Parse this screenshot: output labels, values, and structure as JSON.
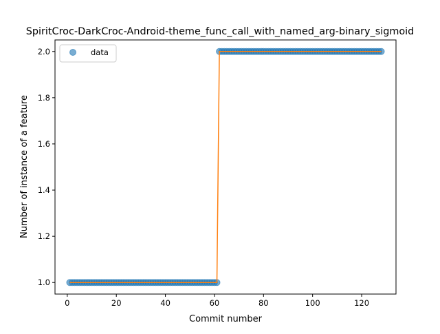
{
  "chart_data": {
    "type": "scatter",
    "title": "SpiritCroc-DarkCroc-Android-theme_func_call_with_named_arg-binary_sigmoid",
    "xlabel": "Commit number",
    "ylabel": "Number of instance of a feature",
    "xlim": [
      -5,
      134
    ],
    "ylim": [
      0.95,
      2.05
    ],
    "xticks": [
      0,
      20,
      40,
      60,
      80,
      100,
      120
    ],
    "yticks": [
      1.0,
      1.2,
      1.4,
      1.6,
      1.8,
      2.0
    ],
    "xtick_labels": [
      "0",
      "20",
      "40",
      "60",
      "80",
      "100",
      "120"
    ],
    "ytick_labels": [
      "1.0",
      "1.2",
      "1.4",
      "1.6",
      "1.8",
      "2.0"
    ],
    "legend": {
      "position": "top-left",
      "entries": [
        "data"
      ]
    },
    "series": [
      {
        "name": "data",
        "style": "markers",
        "color": "#1f77b4",
        "segments": [
          {
            "x_start": 1,
            "x_end": 61,
            "y": 1
          },
          {
            "x_start": 62,
            "x_end": 128,
            "y": 2
          }
        ]
      },
      {
        "style": "line",
        "color": "#ff7f0e",
        "x": [
          1,
          61,
          62,
          128
        ],
        "y": [
          1,
          1,
          2,
          2
        ]
      }
    ],
    "grid": false
  }
}
